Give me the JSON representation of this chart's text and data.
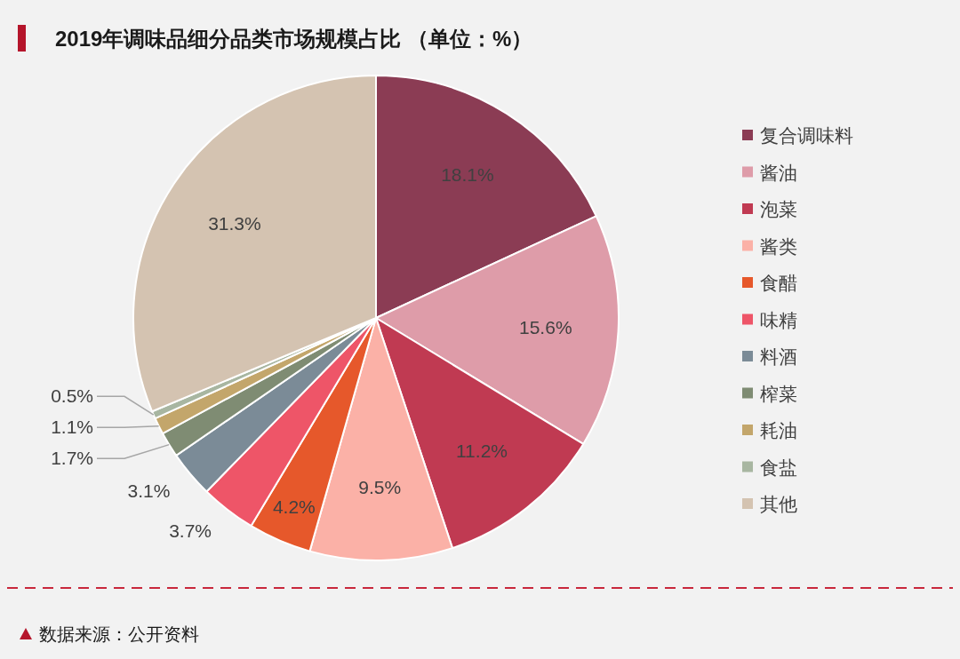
{
  "chart_data": {
    "type": "pie",
    "title": "2019年调味品细分品类市场规模占比 （单位：%）",
    "categories": [
      "复合调味料",
      "酱油",
      "泡菜",
      "酱类",
      "食醋",
      "味精",
      "料酒",
      "榨菜",
      "耗油",
      "食盐",
      "其他"
    ],
    "values": [
      18.1,
      15.6,
      11.2,
      9.5,
      4.2,
      3.7,
      3.1,
      1.7,
      1.1,
      0.5,
      31.3
    ],
    "value_labels": [
      "18.1%",
      "15.6%",
      "11.2%",
      "9.5%",
      "4.2%",
      "3.7%",
      "3.1%",
      "1.7%",
      "1.1%",
      "0.5%",
      "31.3%"
    ],
    "colors": [
      "#8b3c54",
      "#de9ca9",
      "#c03a52",
      "#fbb1a7",
      "#e6582b",
      "#ee5568",
      "#7b8b97",
      "#7f8c73",
      "#c3a66b",
      "#a8b6a1",
      "#d4c3b1"
    ],
    "legend": "right",
    "annotations": [
      "数据来源：公开资料"
    ]
  }
}
